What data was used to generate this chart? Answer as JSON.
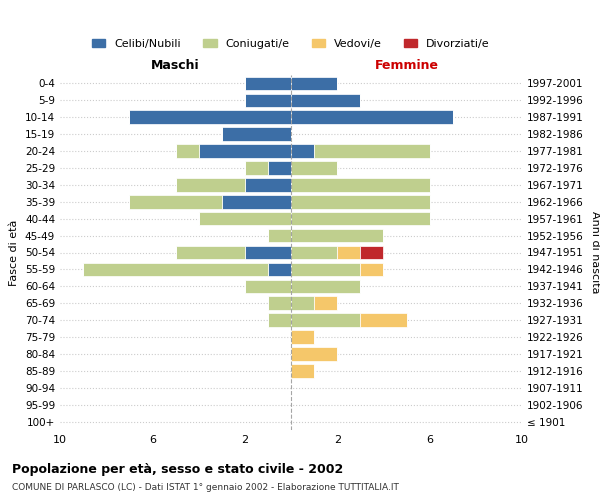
{
  "age_groups": [
    "100+",
    "95-99",
    "90-94",
    "85-89",
    "80-84",
    "75-79",
    "70-74",
    "65-69",
    "60-64",
    "55-59",
    "50-54",
    "45-49",
    "40-44",
    "35-39",
    "30-34",
    "25-29",
    "20-24",
    "15-19",
    "10-14",
    "5-9",
    "0-4"
  ],
  "birth_years": [
    "≤ 1901",
    "1902-1906",
    "1907-1911",
    "1912-1916",
    "1917-1921",
    "1922-1926",
    "1927-1931",
    "1932-1936",
    "1937-1941",
    "1942-1946",
    "1947-1951",
    "1952-1956",
    "1957-1961",
    "1962-1966",
    "1967-1971",
    "1972-1976",
    "1977-1981",
    "1982-1986",
    "1987-1991",
    "1992-1996",
    "1997-2001"
  ],
  "male": {
    "celibi": [
      0,
      0,
      0,
      0,
      0,
      0,
      0,
      0,
      0,
      1,
      2,
      0,
      0,
      3,
      2,
      1,
      4,
      3,
      7,
      2,
      2
    ],
    "coniugati": [
      0,
      0,
      0,
      0,
      0,
      0,
      1,
      1,
      2,
      8,
      3,
      1,
      4,
      4,
      3,
      1,
      1,
      0,
      0,
      0,
      0
    ],
    "vedovi": [
      0,
      0,
      0,
      0,
      0,
      0,
      0,
      0,
      0,
      0,
      0,
      0,
      0,
      0,
      0,
      0,
      0,
      0,
      0,
      0,
      0
    ],
    "divorziati": [
      0,
      0,
      0,
      0,
      0,
      0,
      0,
      0,
      0,
      0,
      0,
      0,
      0,
      0,
      0,
      0,
      0,
      0,
      0,
      0,
      0
    ]
  },
  "female": {
    "celibi": [
      0,
      0,
      0,
      0,
      0,
      0,
      0,
      0,
      0,
      0,
      0,
      0,
      0,
      0,
      0,
      0,
      1,
      0,
      7,
      3,
      2
    ],
    "coniugati": [
      0,
      0,
      0,
      0,
      0,
      0,
      3,
      1,
      3,
      3,
      2,
      4,
      6,
      6,
      6,
      2,
      5,
      0,
      0,
      0,
      0
    ],
    "vedovi": [
      0,
      0,
      0,
      1,
      2,
      1,
      2,
      1,
      0,
      1,
      1,
      0,
      0,
      0,
      0,
      0,
      0,
      0,
      0,
      0,
      0
    ],
    "divorziati": [
      0,
      0,
      0,
      0,
      0,
      0,
      0,
      0,
      0,
      0,
      1,
      0,
      0,
      0,
      0,
      0,
      0,
      0,
      0,
      0,
      0
    ]
  },
  "colors": {
    "celibi": "#3C6EA6",
    "coniugati": "#BFCF8E",
    "vedovi": "#F5C76A",
    "divorziati": "#C0282C"
  },
  "xlim": 10,
  "title": "Popolazione per età, sesso e stato civile - 2002",
  "subtitle": "COMUNE DI PARLASCO (LC) - Dati ISTAT 1° gennaio 2002 - Elaborazione TUTTITALIA.IT",
  "xlabel_left": "Maschi",
  "xlabel_right": "Femmine",
  "ylabel": "Fasce di età",
  "ylabel_right": "Anni di nascita",
  "legend_labels": [
    "Celibi/Nubili",
    "Coniugati/e",
    "Vedovi/e",
    "Divorziati/e"
  ],
  "background_color": "#ffffff",
  "grid_color": "#cccccc"
}
